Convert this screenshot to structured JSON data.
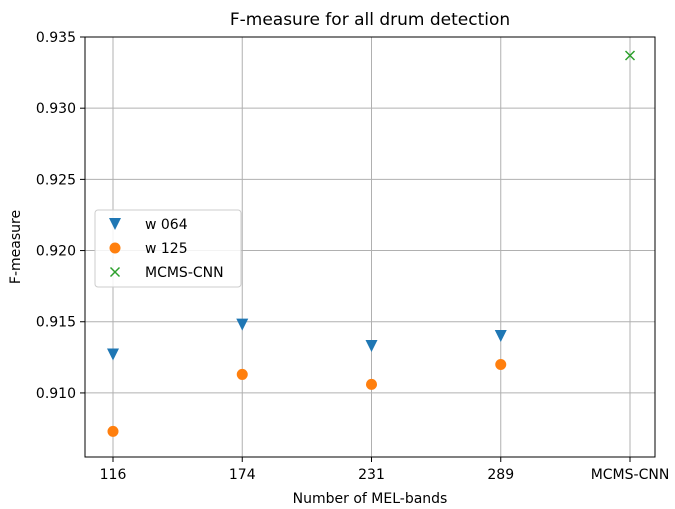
{
  "chart_data": {
    "type": "scatter",
    "title": "F-measure for all drum detection",
    "xlabel": "Number of MEL-bands",
    "ylabel": "F-measure",
    "categories": [
      "116",
      "174",
      "231",
      "289",
      "MCMS-CNN"
    ],
    "ylim": [
      0.9055,
      0.935
    ],
    "yticks": [
      "0.910",
      "0.915",
      "0.920",
      "0.925",
      "0.930",
      "0.935"
    ],
    "ytick_values": [
      0.91,
      0.915,
      0.92,
      0.925,
      0.93,
      0.935
    ],
    "grid": true,
    "legend_position": "center-left",
    "series": [
      {
        "name": "w 064",
        "marker": "triangle-down",
        "color": "#1f77b4",
        "points": [
          {
            "x": "116",
            "y": 0.9127
          },
          {
            "x": "174",
            "y": 0.9148
          },
          {
            "x": "231",
            "y": 0.9133
          },
          {
            "x": "289",
            "y": 0.914
          }
        ]
      },
      {
        "name": "w 125",
        "marker": "circle",
        "color": "#ff7f0e",
        "points": [
          {
            "x": "116",
            "y": 0.9073
          },
          {
            "x": "174",
            "y": 0.9113
          },
          {
            "x": "231",
            "y": 0.9106
          },
          {
            "x": "289",
            "y": 0.912
          }
        ]
      },
      {
        "name": "MCMS-CNN",
        "marker": "x",
        "color": "#2ca02c",
        "points": [
          {
            "x": "MCMS-CNN",
            "y": 0.9337
          }
        ]
      }
    ]
  }
}
